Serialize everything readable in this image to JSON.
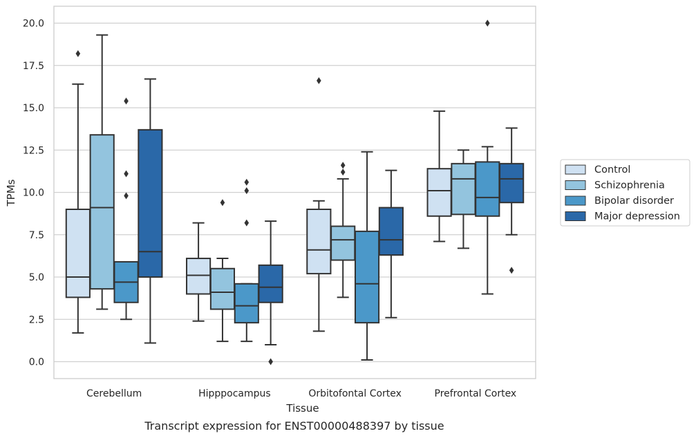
{
  "caption": "Transcript expression for ENST00000488397 by tissue",
  "chart_data": {
    "type": "box",
    "xlabel": "Tissue",
    "ylabel": "TPMs",
    "ylim": [
      -1,
      21
    ],
    "yticks": [
      0.0,
      2.5,
      5.0,
      7.5,
      10.0,
      12.5,
      15.0,
      17.5,
      20.0
    ],
    "ytick_labels": [
      "0.0",
      "2.5",
      "5.0",
      "7.5",
      "10.0",
      "12.5",
      "15.0",
      "17.5",
      "20.0"
    ],
    "grid": "horizontal",
    "legend_position": "right",
    "categories": [
      "Cerebellum",
      "Hipppocampus",
      "Orbitofontal Cortex",
      "Prefrontal Cortex"
    ],
    "series": [
      {
        "name": "Control",
        "color": "#cfe1f2",
        "boxes": [
          {
            "whislo": 1.7,
            "q1": 3.8,
            "med": 5.0,
            "q3": 9.0,
            "whishi": 16.4,
            "fliers": [
              18.2
            ]
          },
          {
            "whislo": 2.4,
            "q1": 4.0,
            "med": 5.1,
            "q3": 6.1,
            "whishi": 8.2,
            "fliers": []
          },
          {
            "whislo": 1.8,
            "q1": 5.2,
            "med": 6.6,
            "q3": 9.0,
            "whishi": 9.5,
            "fliers": [
              16.6
            ]
          },
          {
            "whislo": 7.1,
            "q1": 8.6,
            "med": 10.1,
            "q3": 11.4,
            "whishi": 14.8,
            "fliers": []
          }
        ]
      },
      {
        "name": "Schizophrenia",
        "color": "#93c4de",
        "boxes": [
          {
            "whislo": 3.1,
            "q1": 4.3,
            "med": 9.1,
            "q3": 13.4,
            "whishi": 19.3,
            "fliers": []
          },
          {
            "whislo": 1.2,
            "q1": 3.1,
            "med": 4.1,
            "q3": 5.5,
            "whishi": 6.1,
            "fliers": [
              9.4
            ]
          },
          {
            "whislo": 3.8,
            "q1": 6.0,
            "med": 7.2,
            "q3": 8.0,
            "whishi": 10.8,
            "fliers": [
              11.2,
              11.6
            ]
          },
          {
            "whislo": 6.7,
            "q1": 8.7,
            "med": 10.8,
            "q3": 11.7,
            "whishi": 12.5,
            "fliers": []
          }
        ]
      },
      {
        "name": "Bipolar disorder",
        "color": "#4b98c9",
        "boxes": [
          {
            "whislo": 2.5,
            "q1": 3.5,
            "med": 4.7,
            "q3": 5.9,
            "whishi": 5.9,
            "fliers": [
              9.8,
              11.1,
              15.4
            ]
          },
          {
            "whislo": 1.2,
            "q1": 2.3,
            "med": 3.3,
            "q3": 4.6,
            "whishi": 4.6,
            "fliers": [
              8.2,
              10.1,
              10.6
            ]
          },
          {
            "whislo": 0.1,
            "q1": 2.3,
            "med": 4.6,
            "q3": 7.7,
            "whishi": 12.4,
            "fliers": []
          },
          {
            "whislo": 4.0,
            "q1": 8.6,
            "med": 9.7,
            "q3": 11.8,
            "whishi": 12.7,
            "fliers": [
              20.0
            ]
          }
        ]
      },
      {
        "name": "Major depression",
        "color": "#2a68a8",
        "boxes": [
          {
            "whislo": 1.1,
            "q1": 5.0,
            "med": 6.5,
            "q3": 13.7,
            "whishi": 16.7,
            "fliers": []
          },
          {
            "whislo": 1.0,
            "q1": 3.5,
            "med": 4.4,
            "q3": 5.7,
            "whishi": 8.3,
            "fliers": [
              0.0
            ]
          },
          {
            "whislo": 2.6,
            "q1": 6.3,
            "med": 7.2,
            "q3": 9.1,
            "whishi": 11.3,
            "fliers": []
          },
          {
            "whislo": 7.5,
            "q1": 9.4,
            "med": 10.8,
            "q3": 11.7,
            "whishi": 13.8,
            "fliers": [
              5.4
            ]
          }
        ]
      }
    ]
  }
}
